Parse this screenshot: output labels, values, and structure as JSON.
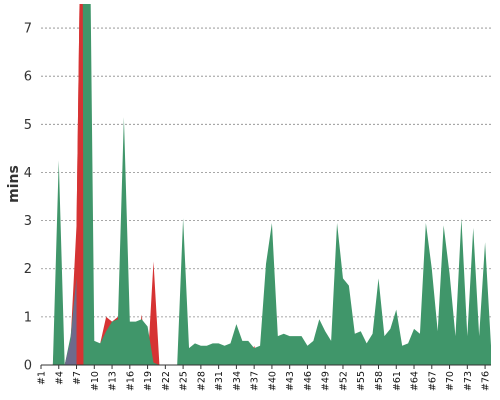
{
  "chart_data": {
    "type": "area",
    "title": "",
    "xlabel": "",
    "ylabel": "mins",
    "ylim": [
      0,
      7.5
    ],
    "yticks": [
      0,
      1,
      2,
      3,
      4,
      5,
      6,
      7
    ],
    "grid": true,
    "x": [
      "#1",
      "#2",
      "#3",
      "#4",
      "#5",
      "#6",
      "#7",
      "#8",
      "#9",
      "#10",
      "#11",
      "#12",
      "#13",
      "#14",
      "#15",
      "#16",
      "#17",
      "#18",
      "#19",
      "#20",
      "#21",
      "#22",
      "#23",
      "#24",
      "#25",
      "#26",
      "#27",
      "#28",
      "#29",
      "#30",
      "#31",
      "#32",
      "#33",
      "#34",
      "#35",
      "#36",
      "#37",
      "#38",
      "#39",
      "#40",
      "#41",
      "#42",
      "#43",
      "#44",
      "#45",
      "#46",
      "#47",
      "#48",
      "#49",
      "#50",
      "#51",
      "#52",
      "#53",
      "#54",
      "#55",
      "#56",
      "#57",
      "#58",
      "#59",
      "#60",
      "#61",
      "#62",
      "#63",
      "#64",
      "#65",
      "#66",
      "#67",
      "#68",
      "#69",
      "#70",
      "#71",
      "#72",
      "#73",
      "#74",
      "#75",
      "#76",
      "#77"
    ],
    "xtick_labels": [
      "#1",
      "#4",
      "#7",
      "#10",
      "#13",
      "#16",
      "#19",
      "#22",
      "#25",
      "#28",
      "#31",
      "#34",
      "#37",
      "#40",
      "#43",
      "#46",
      "#49",
      "#52",
      "#55",
      "#58",
      "#61",
      "#64",
      "#67",
      "#70",
      "#73",
      "#76"
    ],
    "series": [
      {
        "color": "#d63333",
        "values": [
          0,
          0,
          0,
          2.0,
          0,
          0.5,
          2.9,
          12,
          0,
          0,
          0.45,
          1.0,
          0.9,
          1.0,
          0,
          0,
          0,
          1.05,
          0,
          2.15,
          0,
          0,
          0,
          0,
          0.05,
          0,
          0,
          0,
          0,
          0,
          0,
          0,
          0,
          0,
          0,
          0,
          0.4,
          0,
          0,
          0,
          0,
          0,
          0,
          0,
          0,
          0,
          0,
          0,
          0,
          0,
          0,
          0,
          0,
          0,
          0,
          0,
          0,
          0,
          0,
          0,
          0,
          0,
          0,
          0,
          0,
          0,
          0,
          0,
          0,
          0,
          0,
          0,
          0,
          0,
          0,
          0,
          0
        ]
      },
      {
        "color": "#40966a",
        "values": [
          0,
          0,
          0,
          4.25,
          0,
          0.6,
          1.8,
          12,
          12,
          0.5,
          0.45,
          0.7,
          0.9,
          0.95,
          5.15,
          0.9,
          0.9,
          0.95,
          0.8,
          0.05,
          0,
          0,
          0,
          0,
          3.05,
          0.35,
          0.45,
          0.4,
          0.4,
          0.45,
          0.45,
          0.4,
          0.45,
          0.85,
          0.5,
          0.5,
          0.35,
          0.4,
          2.1,
          2.95,
          0.6,
          0.65,
          0.6,
          0.6,
          0.6,
          0.4,
          0.5,
          0.95,
          0.7,
          0.5,
          2.95,
          1.8,
          1.65,
          0.65,
          0.7,
          0.45,
          0.65,
          1.8,
          0.6,
          0.75,
          1.15,
          0.4,
          0.45,
          0.75,
          0.65,
          2.95,
          2.0,
          0.7,
          2.9,
          1.9,
          0.6,
          3.05,
          0.6,
          2.85,
          0.6,
          2.55,
          0.4
        ]
      }
    ],
    "overlap_color": "#6e6a8c"
  }
}
